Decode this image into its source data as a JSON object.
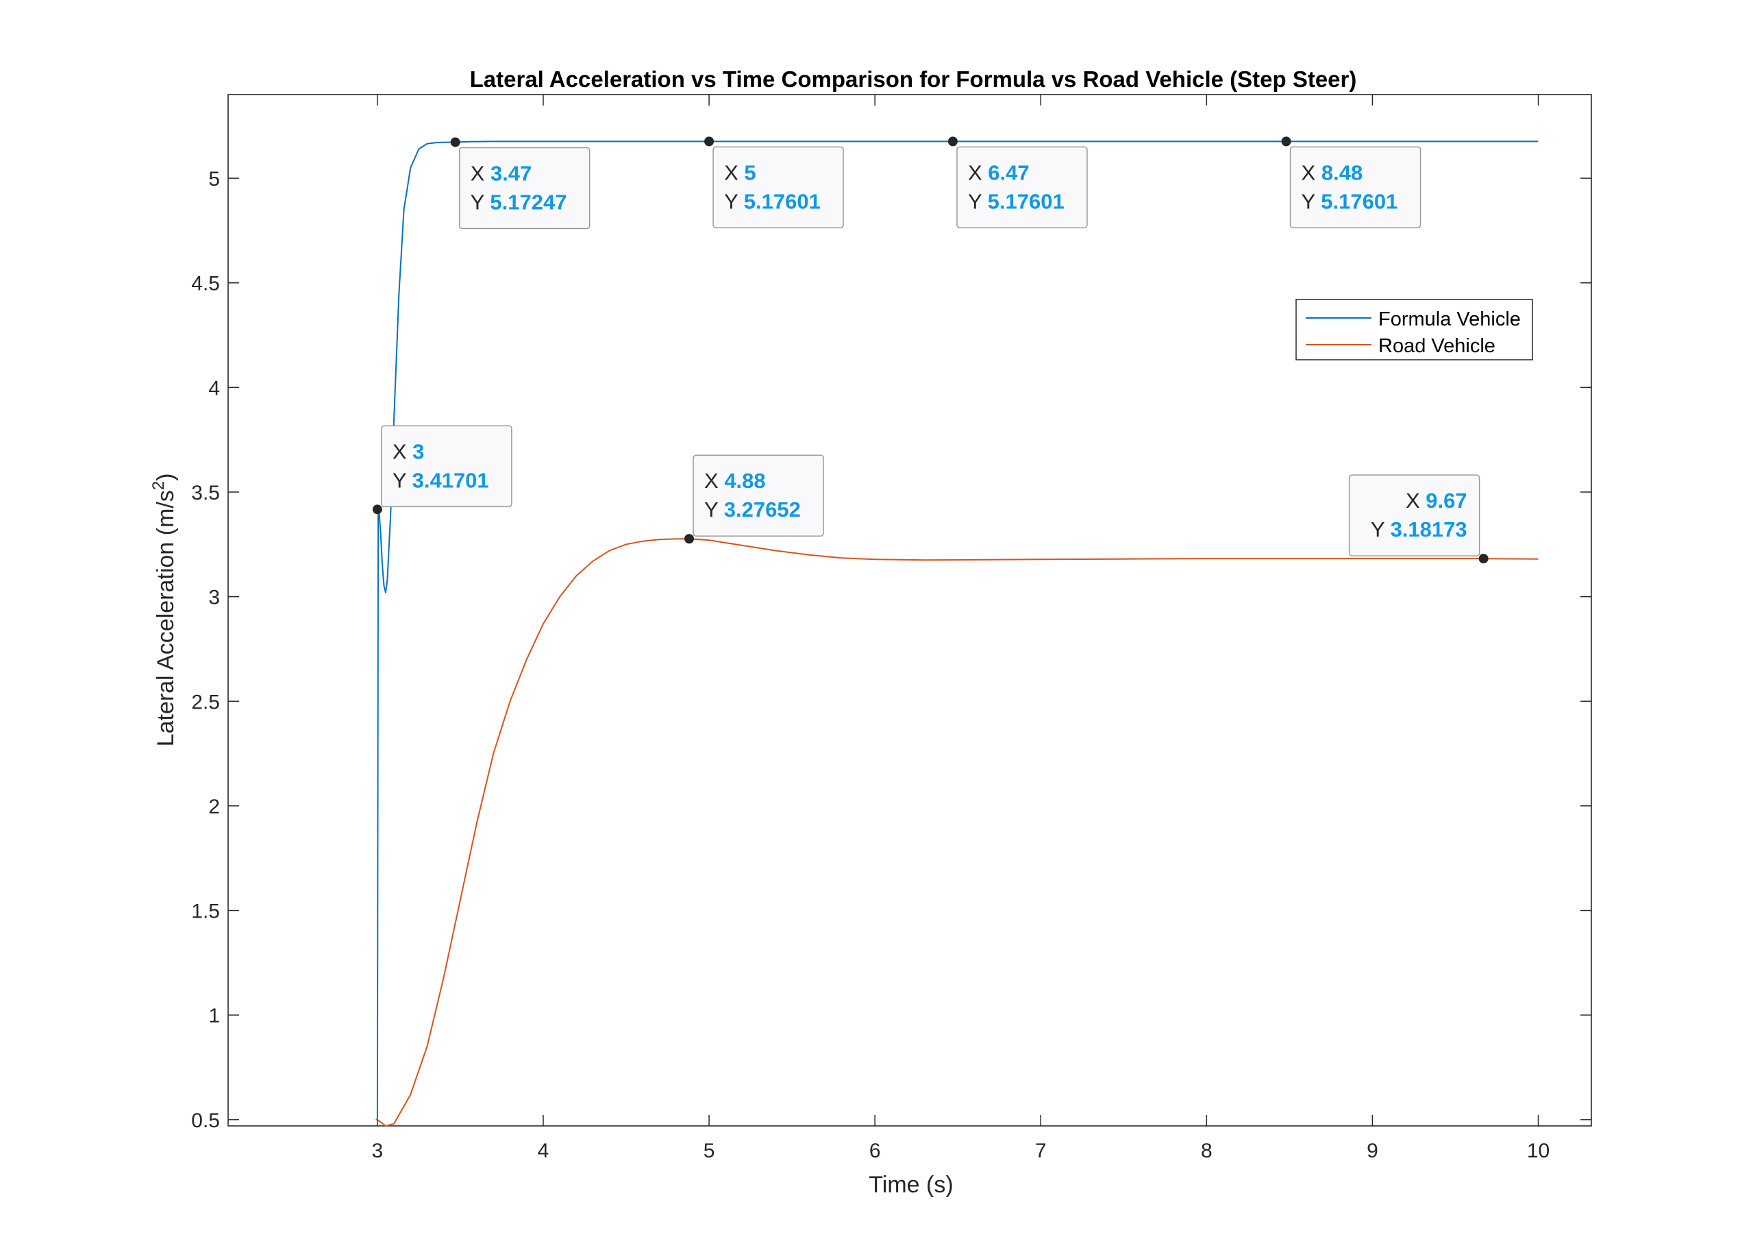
{
  "chart_data": {
    "type": "line",
    "title": "Lateral Acceleration vs Time Comparison for Formula vs Road Vehicle (Step Steer)",
    "xlabel": "Time (s)",
    "ylabel": "Lateral Acceleration (m/s",
    "ylabel_sup": "2",
    "ylabel_close": ")",
    "xlim": [
      2.1,
      10.32
    ],
    "ylim": [
      0.47,
      5.4
    ],
    "xticks": [
      3,
      4,
      5,
      6,
      7,
      8,
      9,
      10
    ],
    "xtick_labels": [
      "3",
      "4",
      "5",
      "6",
      "7",
      "8",
      "9",
      "10"
    ],
    "yticks": [
      0.5,
      1,
      1.5,
      2,
      2.5,
      3,
      3.5,
      4,
      4.5,
      5
    ],
    "ytick_labels": [
      "0.5",
      "1",
      "1.5",
      "2",
      "2.5",
      "3",
      "3.5",
      "4",
      "4.5",
      "5"
    ],
    "grid": false,
    "legend_position": "upper-right",
    "series": [
      {
        "name": "Formula Vehicle",
        "color": "#0072bd",
        "x": [
          2.99,
          3.0,
          3.005,
          3.01,
          3.02,
          3.03,
          3.04,
          3.05,
          3.06,
          3.08,
          3.1,
          3.13,
          3.16,
          3.2,
          3.25,
          3.3,
          3.35,
          3.4,
          3.47,
          3.55,
          3.7,
          4.0,
          5.0,
          6.47,
          8.48,
          10.0
        ],
        "y": [
          0.5,
          0.5,
          3.41,
          3.41,
          3.3,
          3.15,
          3.05,
          3.02,
          3.08,
          3.4,
          3.85,
          4.45,
          4.85,
          5.05,
          5.14,
          5.165,
          5.17,
          5.172,
          5.17247,
          5.175,
          5.176,
          5.176,
          5.17601,
          5.17601,
          5.17601,
          5.176
        ]
      },
      {
        "name": "Road Vehicle",
        "color": "#d95319",
        "x": [
          2.99,
          3.0,
          3.05,
          3.1,
          3.2,
          3.3,
          3.4,
          3.5,
          3.6,
          3.7,
          3.8,
          3.9,
          4.0,
          4.1,
          4.2,
          4.3,
          4.4,
          4.5,
          4.6,
          4.7,
          4.8,
          4.88,
          5.0,
          5.2,
          5.4,
          5.6,
          5.8,
          6.0,
          6.3,
          6.6,
          7.0,
          7.5,
          8.0,
          8.5,
          9.0,
          9.5,
          9.67,
          10.0
        ],
        "y": [
          0.5,
          0.5,
          0.47,
          0.48,
          0.62,
          0.85,
          1.18,
          1.55,
          1.92,
          2.25,
          2.5,
          2.7,
          2.87,
          3.0,
          3.1,
          3.17,
          3.22,
          3.25,
          3.265,
          3.273,
          3.276,
          3.27652,
          3.27,
          3.245,
          3.22,
          3.2,
          3.185,
          3.178,
          3.175,
          3.176,
          3.178,
          3.18,
          3.182,
          3.182,
          3.182,
          3.182,
          3.18173,
          3.18
        ]
      }
    ],
    "annotations": [
      {
        "x": 3,
        "y": 3.41701,
        "x_text": "3",
        "y_text": "3.41701",
        "placement": "upper-right"
      },
      {
        "x": 3.47,
        "y": 5.17247,
        "x_text": "3.47",
        "y_text": "5.17247",
        "placement": "lower-right"
      },
      {
        "x": 5,
        "y": 5.17601,
        "x_text": "5",
        "y_text": "5.17601",
        "placement": "lower-right"
      },
      {
        "x": 6.47,
        "y": 5.17601,
        "x_text": "6.47",
        "y_text": "5.17601",
        "placement": "lower-right"
      },
      {
        "x": 8.48,
        "y": 5.17601,
        "x_text": "8.48",
        "y_text": "5.17601",
        "placement": "lower-right"
      },
      {
        "x": 4.88,
        "y": 3.27652,
        "x_text": "4.88",
        "y_text": "3.27652",
        "placement": "upper-right"
      },
      {
        "x": 9.67,
        "y": 3.18173,
        "x_text": "9.67",
        "y_text": "3.18173",
        "placement": "upper-left"
      }
    ],
    "tooltip_x_key": "X",
    "tooltip_y_key": "Y"
  }
}
